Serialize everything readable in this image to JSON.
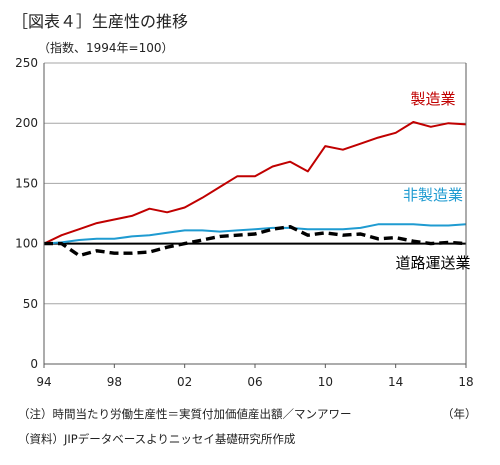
{
  "page": {
    "title": "［図表４］生産性の推移",
    "unit_label": "（指数、1994年=100）",
    "year_unit": "（年）",
    "note_1": "（注）時間当たり労働生産性＝実質付加価値産出額／マンアワー",
    "note_2": "（資料）JIPデータベースよりニッセイ基礎研究所作成"
  },
  "chart_data": {
    "type": "line",
    "title": "［図表４］生産性の推移",
    "ylabel": "（指数、1994年=100）",
    "xlabel": "",
    "x": [
      1994,
      1995,
      1996,
      1997,
      1998,
      1999,
      2000,
      2001,
      2002,
      2003,
      2004,
      2005,
      2006,
      2007,
      2008,
      2009,
      2010,
      2011,
      2012,
      2013,
      2014,
      2015,
      2016,
      2017,
      2018
    ],
    "xlim": [
      1994,
      2018
    ],
    "ylim": [
      0,
      250
    ],
    "x_ticks": [
      1994,
      1998,
      2002,
      2006,
      2010,
      2014,
      2018
    ],
    "x_tick_labels": [
      "94",
      "98",
      "02",
      "06",
      "10",
      "14",
      "18"
    ],
    "y_ticks": [
      0,
      50,
      100,
      150,
      200,
      250
    ],
    "y_tick_labels": [
      "0",
      "50",
      "100",
      "150",
      "200",
      "250"
    ],
    "grid": "horizontal",
    "reference_line": 100,
    "series": [
      {
        "name": "製造業",
        "color": "#c00000",
        "style": "solid",
        "values": [
          100,
          107,
          112,
          117,
          120,
          123,
          129,
          126,
          130,
          138,
          147,
          156,
          156,
          164,
          168,
          160,
          181,
          178,
          183,
          188,
          192,
          201,
          197,
          200,
          199
        ]
      },
      {
        "name": "非製造業",
        "color": "#1f9bd1",
        "style": "solid",
        "values": [
          100,
          101,
          103,
          104,
          104,
          106,
          107,
          109,
          111,
          111,
          110,
          111,
          112,
          113,
          113,
          112,
          112,
          112,
          113,
          116,
          116,
          116,
          115,
          115,
          116
        ]
      },
      {
        "name": "道路運送業",
        "color": "#000000",
        "style": "dashed",
        "values": [
          100,
          100,
          90,
          94,
          92,
          92,
          93,
          97,
          100,
          103,
          106,
          107,
          108,
          112,
          114,
          107,
          109,
          107,
          108,
          104,
          105,
          102,
          100,
          101,
          100
        ]
      }
    ],
    "series_label_colors": [
      "#c00000",
      "#1f9bd1",
      "#000000"
    ]
  }
}
